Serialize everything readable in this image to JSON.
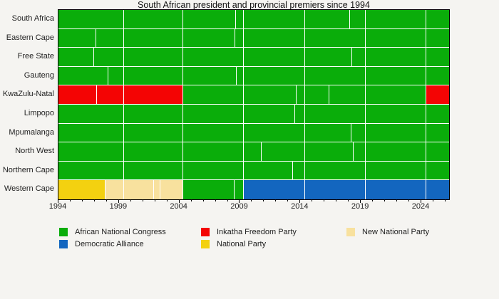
{
  "chart_data": {
    "type": "bar",
    "subtype": "timeline-gantt",
    "title": "South African president and provincial premiers since 1994",
    "x_domain": [
      1994,
      2026.3
    ],
    "x_ticks": [
      1994,
      1999,
      2004,
      2009,
      2014,
      2019,
      2024
    ],
    "x_minor_tick_step": 1,
    "grid": "off",
    "legend_position": "bottom",
    "parties": [
      {
        "id": "ANC",
        "name": "African National Congress",
        "color": "#0aad0a"
      },
      {
        "id": "DA",
        "name": "Democratic Alliance",
        "color": "#1366bf"
      },
      {
        "id": "IFP",
        "name": "Inkatha Freedom Party",
        "color": "#f40404"
      },
      {
        "id": "NP",
        "name": "National Party",
        "color": "#f3d110"
      },
      {
        "id": "NNP",
        "name": "New National Party",
        "color": "#f8e19e"
      }
    ],
    "legend_columns": [
      [
        "ANC",
        "DA"
      ],
      [
        "IFP",
        "NP"
      ],
      [
        "NNP"
      ]
    ],
    "rows": [
      {
        "label": "South Africa",
        "segments": [
          [
            1994,
            1999.45,
            "ANC"
          ],
          [
            1999.45,
            2004.3,
            "ANC"
          ],
          [
            2004.3,
            2008.7,
            "ANC"
          ],
          [
            2008.7,
            2009.35,
            "ANC"
          ],
          [
            2009.35,
            2014.4,
            "ANC"
          ],
          [
            2014.4,
            2018.1,
            "ANC"
          ],
          [
            2018.1,
            2019.4,
            "ANC"
          ],
          [
            2019.4,
            2024.4,
            "ANC"
          ],
          [
            2024.4,
            2026.3,
            "ANC"
          ]
        ]
      },
      {
        "label": "Eastern Cape",
        "segments": [
          [
            1994,
            1997.1,
            "ANC"
          ],
          [
            1997.1,
            1999.45,
            "ANC"
          ],
          [
            1999.45,
            2004.3,
            "ANC"
          ],
          [
            2004.3,
            2008.6,
            "ANC"
          ],
          [
            2008.6,
            2009.35,
            "ANC"
          ],
          [
            2009.35,
            2014.4,
            "ANC"
          ],
          [
            2014.4,
            2019.4,
            "ANC"
          ],
          [
            2019.4,
            2024.4,
            "ANC"
          ],
          [
            2024.4,
            2026.3,
            "ANC"
          ]
        ]
      },
      {
        "label": "Free State",
        "segments": [
          [
            1994,
            1996.95,
            "ANC"
          ],
          [
            1996.95,
            1999.45,
            "ANC"
          ],
          [
            1999.45,
            2004.3,
            "ANC"
          ],
          [
            2004.3,
            2009.35,
            "ANC"
          ],
          [
            2009.35,
            2014.4,
            "ANC"
          ],
          [
            2014.4,
            2018.3,
            "ANC"
          ],
          [
            2018.3,
            2019.4,
            "ANC"
          ],
          [
            2019.4,
            2024.4,
            "ANC"
          ],
          [
            2024.4,
            2026.3,
            "ANC"
          ]
        ]
      },
      {
        "label": "Gauteng",
        "segments": [
          [
            1994,
            1998.1,
            "ANC"
          ],
          [
            1998.1,
            1999.45,
            "ANC"
          ],
          [
            1999.45,
            2004.3,
            "ANC"
          ],
          [
            2004.3,
            2008.75,
            "ANC"
          ],
          [
            2008.75,
            2009.35,
            "ANC"
          ],
          [
            2009.35,
            2014.4,
            "ANC"
          ],
          [
            2014.4,
            2019.4,
            "ANC"
          ],
          [
            2019.4,
            2024.4,
            "ANC"
          ],
          [
            2024.4,
            2026.3,
            "ANC"
          ]
        ]
      },
      {
        "label": "KwaZulu-Natal",
        "segments": [
          [
            1994,
            1997.2,
            "IFP"
          ],
          [
            1997.2,
            1999.45,
            "IFP"
          ],
          [
            1999.45,
            2004.3,
            "IFP"
          ],
          [
            2004.3,
            2009.35,
            "ANC"
          ],
          [
            2009.35,
            2013.7,
            "ANC"
          ],
          [
            2013.7,
            2014.4,
            "ANC"
          ],
          [
            2014.4,
            2016.4,
            "ANC"
          ],
          [
            2016.4,
            2019.4,
            "ANC"
          ],
          [
            2019.4,
            2024.4,
            "ANC"
          ],
          [
            2024.4,
            2026.3,
            "IFP"
          ]
        ]
      },
      {
        "label": "Limpopo",
        "segments": [
          [
            1994,
            1999.45,
            "ANC"
          ],
          [
            1999.45,
            2004.3,
            "ANC"
          ],
          [
            2004.3,
            2009.35,
            "ANC"
          ],
          [
            2009.35,
            2013.55,
            "ANC"
          ],
          [
            2013.55,
            2014.4,
            "ANC"
          ],
          [
            2014.4,
            2019.4,
            "ANC"
          ],
          [
            2019.4,
            2024.4,
            "ANC"
          ],
          [
            2024.4,
            2026.3,
            "ANC"
          ]
        ]
      },
      {
        "label": "Mpumalanga",
        "segments": [
          [
            1994,
            1999.45,
            "ANC"
          ],
          [
            1999.45,
            2004.3,
            "ANC"
          ],
          [
            2004.3,
            2009.35,
            "ANC"
          ],
          [
            2009.35,
            2014.4,
            "ANC"
          ],
          [
            2014.4,
            2018.2,
            "ANC"
          ],
          [
            2018.2,
            2019.4,
            "ANC"
          ],
          [
            2019.4,
            2024.4,
            "ANC"
          ],
          [
            2024.4,
            2026.3,
            "ANC"
          ]
        ]
      },
      {
        "label": "North West",
        "segments": [
          [
            1994,
            1999.45,
            "ANC"
          ],
          [
            1999.45,
            2004.3,
            "ANC"
          ],
          [
            2004.3,
            2009.35,
            "ANC"
          ],
          [
            2009.35,
            2010.8,
            "ANC"
          ],
          [
            2010.8,
            2014.4,
            "ANC"
          ],
          [
            2014.4,
            2018.4,
            "ANC"
          ],
          [
            2018.4,
            2019.4,
            "ANC"
          ],
          [
            2019.4,
            2024.4,
            "ANC"
          ],
          [
            2024.4,
            2026.3,
            "ANC"
          ]
        ]
      },
      {
        "label": "Northern Cape",
        "segments": [
          [
            1994,
            1999.45,
            "ANC"
          ],
          [
            1999.45,
            2004.3,
            "ANC"
          ],
          [
            2004.3,
            2009.35,
            "ANC"
          ],
          [
            2009.35,
            2013.4,
            "ANC"
          ],
          [
            2013.4,
            2014.4,
            "ANC"
          ],
          [
            2014.4,
            2019.4,
            "ANC"
          ],
          [
            2019.4,
            2024.4,
            "ANC"
          ],
          [
            2024.4,
            2026.3,
            "ANC"
          ]
        ]
      },
      {
        "label": "Western Cape",
        "segments": [
          [
            1994,
            1997.9,
            "NP"
          ],
          [
            1997.9,
            1999.45,
            "NNP"
          ],
          [
            1999.45,
            2001.9,
            "NNP"
          ],
          [
            2001.9,
            2002.45,
            "NNP"
          ],
          [
            2002.45,
            2004.3,
            "NNP"
          ],
          [
            2004.3,
            2008.55,
            "ANC"
          ],
          [
            2008.55,
            2009.35,
            "ANC"
          ],
          [
            2009.35,
            2014.4,
            "DA"
          ],
          [
            2014.4,
            2019.4,
            "DA"
          ],
          [
            2019.4,
            2024.4,
            "DA"
          ],
          [
            2024.4,
            2026.3,
            "DA"
          ]
        ]
      }
    ]
  },
  "colors": {
    "background": "#f5f4f1",
    "plot_background": "#ffffff",
    "axis": "#000000",
    "text": "#222222"
  }
}
